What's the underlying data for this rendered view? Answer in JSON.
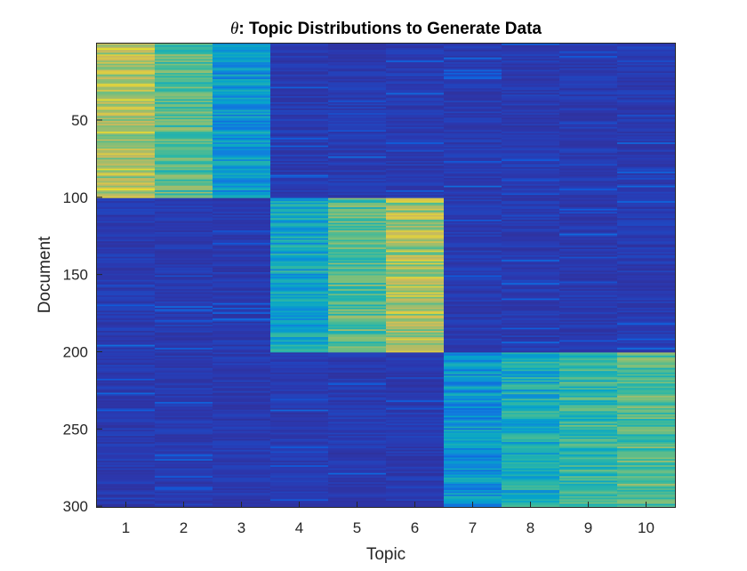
{
  "chart_data": {
    "type": "heatmap",
    "title_symbol": "θ",
    "title_rest": ": Topic Distributions to Generate Data",
    "xlabel": "Topic",
    "ylabel": "Document",
    "x_ticks": [
      "1",
      "2",
      "3",
      "4",
      "5",
      "6",
      "7",
      "8",
      "9",
      "10"
    ],
    "y_ticks": [
      "50",
      "100",
      "150",
      "200",
      "250",
      "300"
    ],
    "y_tick_values": [
      50,
      100,
      150,
      200,
      250,
      300
    ],
    "xlim": [
      0.5,
      10.5
    ],
    "ylim": [
      0.5,
      300.5
    ],
    "y_direction": "reversed",
    "colormap": "parula",
    "n_documents": 300,
    "n_topics": 10,
    "blocks": [
      {
        "documents": [
          1,
          100
        ],
        "topics": [
          1
        ],
        "level": 0.82
      },
      {
        "documents": [
          1,
          100
        ],
        "topics": [
          2
        ],
        "level": 0.68
      },
      {
        "documents": [
          1,
          100
        ],
        "topics": [
          3
        ],
        "level": 0.46
      },
      {
        "documents": [
          101,
          200
        ],
        "topics": [
          4
        ],
        "level": 0.52
      },
      {
        "documents": [
          101,
          200
        ],
        "topics": [
          5
        ],
        "level": 0.68
      },
      {
        "documents": [
          101,
          200
        ],
        "topics": [
          6
        ],
        "level": 0.8
      },
      {
        "documents": [
          201,
          300
        ],
        "topics": [
          7
        ],
        "level": 0.44
      },
      {
        "documents": [
          201,
          300
        ],
        "topics": [
          8
        ],
        "level": 0.55
      },
      {
        "documents": [
          201,
          300
        ],
        "topics": [
          9
        ],
        "level": 0.62
      },
      {
        "documents": [
          201,
          300
        ],
        "topics": [
          10
        ],
        "level": 0.68
      }
    ],
    "background_level": 0.1
  }
}
